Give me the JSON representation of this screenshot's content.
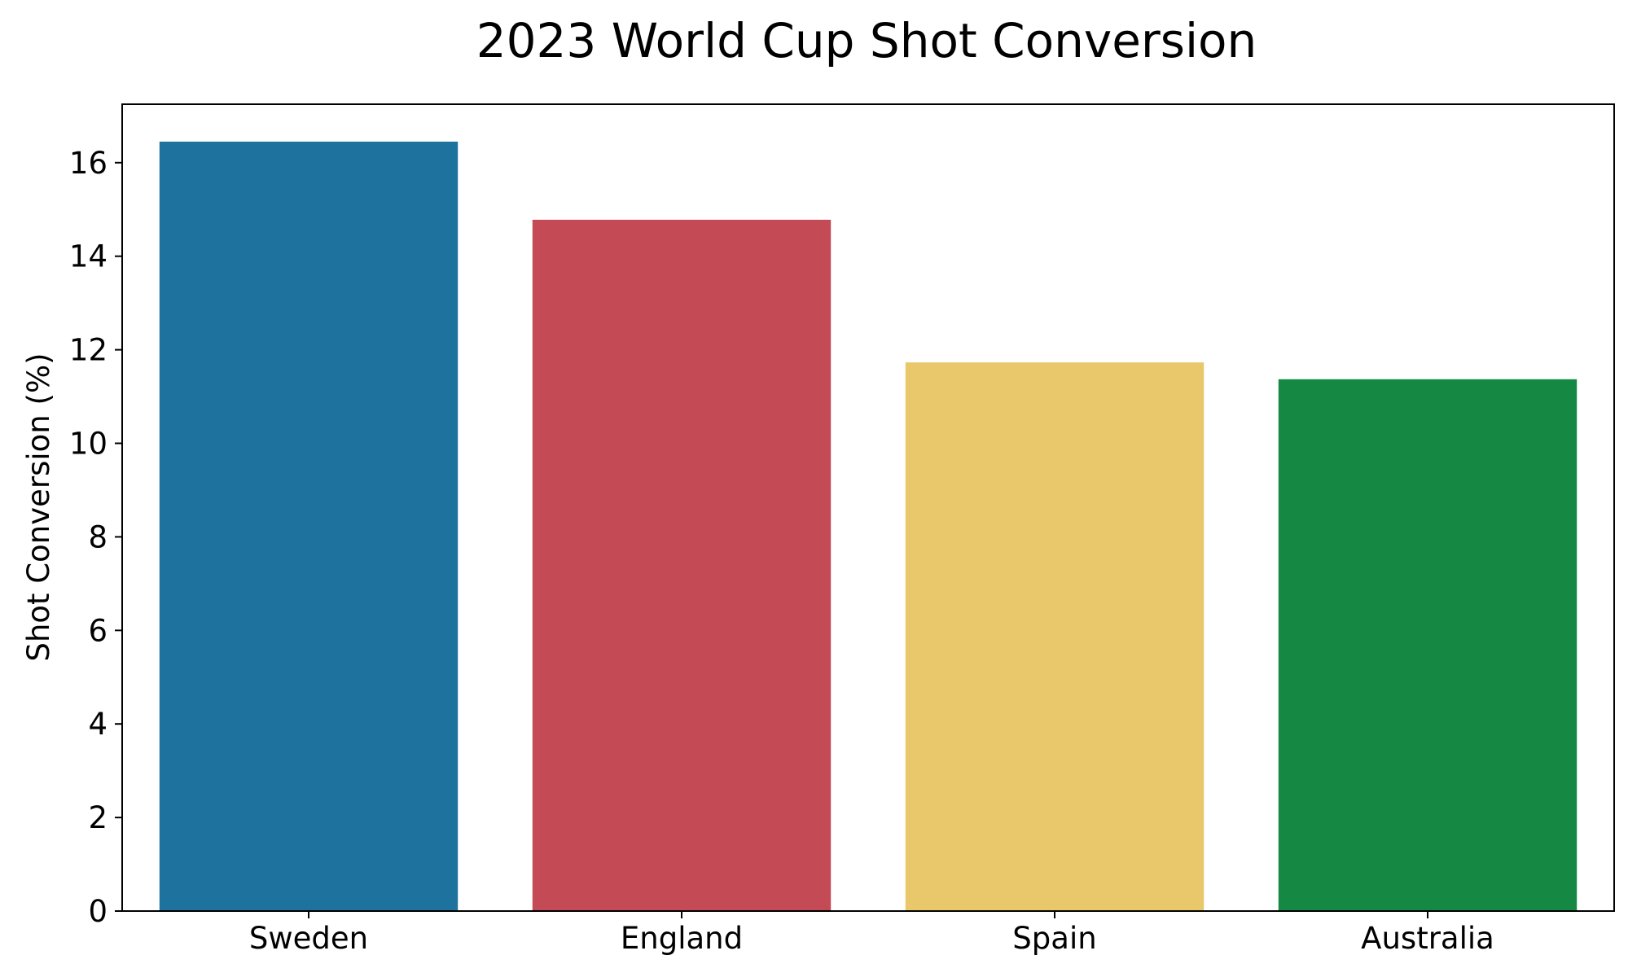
{
  "chart_data": {
    "type": "bar",
    "title": "2023 World Cup Shot Conversion",
    "xlabel": "",
    "ylabel": "Shot Conversion (%)",
    "categories": [
      "Sweden",
      "England",
      "Spain",
      "Australia"
    ],
    "values": [
      16.45,
      14.78,
      11.73,
      11.37
    ],
    "colors": [
      "#1d739e",
      "#c44a55",
      "#e9c76b",
      "#158943"
    ],
    "ylim": [
      0,
      17.25
    ],
    "yticks": [
      "0",
      "2",
      "4",
      "6",
      "8",
      "10",
      "12",
      "14",
      "16"
    ],
    "grid": false,
    "legend": "none"
  }
}
